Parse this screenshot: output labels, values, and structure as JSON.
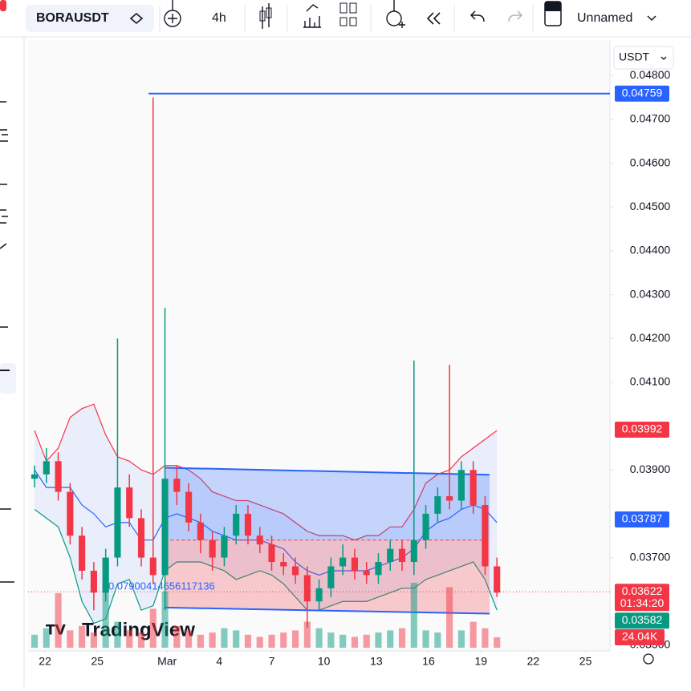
{
  "toolbar": {
    "symbol": "BORAUSDT",
    "interval": "4h",
    "layout": "Unnamed"
  },
  "currency": "USDT",
  "watermark": "TradingView",
  "chart_data": {
    "type": "candlestick",
    "up_color": "#089981",
    "down_color": "#f23645",
    "xlim": [
      -0.97,
      32.4
    ],
    "xticks": [
      {
        "value": 0,
        "label": "22"
      },
      {
        "value": 3,
        "label": "25"
      },
      {
        "value": 7,
        "label": "Mar"
      },
      {
        "value": 10,
        "label": "4"
      },
      {
        "value": 13,
        "label": "7"
      },
      {
        "value": 16,
        "label": "10"
      },
      {
        "value": 19,
        "label": "13"
      },
      {
        "value": 22,
        "label": "16"
      },
      {
        "value": 25,
        "label": "19"
      },
      {
        "value": 28,
        "label": "22"
      },
      {
        "value": 31,
        "label": "25"
      }
    ],
    "ylim": [
      0.03487,
      0.04881
    ],
    "yticks": [
      {
        "value": 0.048,
        "label": "0.04800"
      },
      {
        "value": 0.047,
        "label": "0.04700"
      },
      {
        "value": 0.046,
        "label": "0.04600"
      },
      {
        "value": 0.045,
        "label": "0.04500"
      },
      {
        "value": 0.044,
        "label": "0.04400"
      },
      {
        "value": 0.043,
        "label": "0.04300"
      },
      {
        "value": 0.042,
        "label": "0.04200"
      },
      {
        "value": 0.041,
        "label": "0.04100"
      },
      {
        "value": 0.039,
        "label": "0.03900"
      },
      {
        "value": 0.037,
        "label": "0.03700"
      },
      {
        "value": 0.035,
        "label": "0.03500"
      }
    ],
    "x": [
      -0.6,
      0.08,
      0.76,
      1.44,
      2.12,
      2.8,
      3.48,
      4.16,
      4.84,
      5.52,
      6.2,
      6.88,
      7.56,
      8.24,
      8.92,
      9.6,
      10.28,
      10.96,
      11.64,
      12.32,
      13,
      13.68,
      14.36,
      15.04,
      15.72,
      16.4,
      17.08,
      17.76,
      18.44,
      19.12,
      19.8,
      20.48,
      21.16,
      21.84,
      22.52,
      23.2,
      23.88,
      24.56,
      25.24,
      25.92
    ],
    "open": [
      0.0388,
      0.0389,
      0.0392,
      0.0385,
      0.0375,
      0.0367,
      0.0362,
      0.037,
      0.0386,
      0.0379,
      0.037,
      0.0366,
      0.0388,
      0.0385,
      0.0378,
      0.0374,
      0.037,
      0.0375,
      0.038,
      0.0375,
      0.0373,
      0.0369,
      0.0368,
      0.0366,
      0.036,
      0.0363,
      0.0368,
      0.037,
      0.0367,
      0.0366,
      0.0369,
      0.0372,
      0.0369,
      0.0374,
      0.038,
      0.0384,
      0.0383,
      0.039,
      0.0382,
      0.0368
    ],
    "high": [
      0.0391,
      0.0395,
      0.0394,
      0.0387,
      0.0377,
      0.0369,
      0.0372,
      0.042,
      0.0389,
      0.0381,
      0.0475,
      0.0427,
      0.0391,
      0.0387,
      0.038,
      0.0376,
      0.0377,
      0.0382,
      0.0382,
      0.0377,
      0.0375,
      0.0371,
      0.037,
      0.0368,
      0.0365,
      0.037,
      0.0373,
      0.0372,
      0.0369,
      0.0371,
      0.0374,
      0.0374,
      0.0415,
      0.0382,
      0.0386,
      0.0414,
      0.0392,
      0.0392,
      0.0384,
      0.037
    ],
    "low": [
      0.0386,
      0.0387,
      0.0383,
      0.0373,
      0.0365,
      0.0358,
      0.036,
      0.0368,
      0.0377,
      0.0368,
      0.0364,
      0.0358,
      0.0382,
      0.0376,
      0.0371,
      0.0367,
      0.0368,
      0.0373,
      0.0373,
      0.0371,
      0.0367,
      0.0366,
      0.0364,
      0.0354,
      0.0358,
      0.0361,
      0.0366,
      0.0365,
      0.0364,
      0.0364,
      0.0367,
      0.0367,
      0.0366,
      0.0372,
      0.0378,
      0.0381,
      0.0381,
      0.038,
      0.0366,
      0.0361
    ],
    "close": [
      0.0389,
      0.0392,
      0.0385,
      0.0375,
      0.0367,
      0.0362,
      0.037,
      0.0386,
      0.0379,
      0.037,
      0.0366,
      0.0388,
      0.0385,
      0.0378,
      0.0374,
      0.037,
      0.0375,
      0.038,
      0.0375,
      0.0373,
      0.0369,
      0.0368,
      0.0366,
      0.036,
      0.0363,
      0.0368,
      0.037,
      0.0367,
      0.0366,
      0.0369,
      0.0372,
      0.0369,
      0.0374,
      0.038,
      0.0384,
      0.0383,
      0.039,
      0.0382,
      0.0368,
      0.0362
    ],
    "bands": {
      "upper": [
        0.0399,
        0.0392,
        0.0395,
        0.0402,
        0.0404,
        0.0405,
        0.0398,
        0.0393,
        0.0392,
        0.039,
        0.0389,
        0.0391,
        0.0391,
        0.039,
        0.0388,
        0.0385,
        0.0384,
        0.0383,
        0.0383,
        0.0382,
        0.0381,
        0.038,
        0.0378,
        0.0376,
        0.0375,
        0.0375,
        0.0375,
        0.0374,
        0.0375,
        0.0375,
        0.0377,
        0.0377,
        0.0381,
        0.0387,
        0.0389,
        0.039,
        0.0393,
        0.0395,
        0.0397,
        0.0399
      ],
      "basis": [
        0.039,
        0.0386,
        0.0386,
        0.0386,
        0.0382,
        0.038,
        0.0377,
        0.0378,
        0.0378,
        0.0374,
        0.0374,
        0.0379,
        0.038,
        0.0379,
        0.0378,
        0.0376,
        0.0375,
        0.0374,
        0.0374,
        0.0374,
        0.0373,
        0.0372,
        0.0369,
        0.0367,
        0.0366,
        0.0367,
        0.0367,
        0.0367,
        0.0367,
        0.0368,
        0.0369,
        0.037,
        0.0372,
        0.0376,
        0.0378,
        0.0379,
        0.0381,
        0.0382,
        0.0381,
        0.0378
      ],
      "lower": [
        0.0381,
        0.0379,
        0.0377,
        0.037,
        0.036,
        0.0355,
        0.0356,
        0.0364,
        0.0365,
        0.0358,
        0.0359,
        0.0367,
        0.0369,
        0.0369,
        0.0369,
        0.0368,
        0.0367,
        0.0365,
        0.0366,
        0.0367,
        0.0366,
        0.0364,
        0.0361,
        0.0358,
        0.0358,
        0.0359,
        0.036,
        0.036,
        0.036,
        0.0361,
        0.0362,
        0.0363,
        0.0363,
        0.0365,
        0.0366,
        0.0367,
        0.0368,
        0.0369,
        0.0365,
        0.0358
      ]
    },
    "volume": [
      30,
      45,
      126,
      40,
      50,
      35,
      200,
      60,
      40,
      35,
      90,
      130,
      50,
      40,
      30,
      35,
      45,
      40,
      30,
      25,
      30,
      35,
      40,
      60,
      45,
      35,
      30,
      25,
      30,
      35,
      40,
      45,
      150,
      40,
      35,
      140,
      40,
      60,
      45,
      24.04
    ],
    "vlim": [
      0,
      200
    ],
    "price_tags": [
      {
        "value": 0.04759,
        "color": "#2962ff"
      },
      {
        "value": 0.03992,
        "color": "#f23645"
      },
      {
        "value": 0.03787,
        "color": "#2962ff"
      },
      {
        "value": 0.03622,
        "timer": "01:34:20",
        "color": "#f23645"
      },
      {
        "value": 0.03582,
        "color": "#089981"
      }
    ],
    "volume_tag": {
      "value": 24.04,
      "label": "24.04K",
      "color": "#f23645"
    },
    "drawings": {
      "hline_start": 5.94,
      "channel": {
        "x": [
          6.87,
          25.5
        ],
        "top": [
          0.03905,
          0.03889
        ],
        "bottom": [
          0.03586,
          0.03572
        ],
        "mid": 0.0374
      },
      "annotation": "0.07900414656117136"
    }
  }
}
